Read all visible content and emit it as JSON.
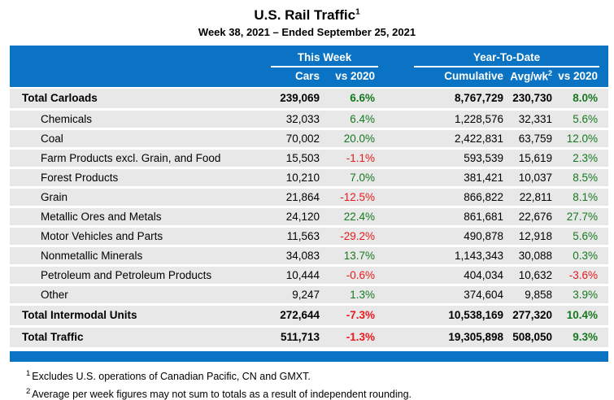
{
  "title": {
    "text": "U.S. Rail Traffic",
    "superscript": "1"
  },
  "subtitle": "Week 38, 2021 – Ended September 25, 2021",
  "table": {
    "group_headers": {
      "this_week": "This Week",
      "year_to_date": "Year-To-Date"
    },
    "column_headers": {
      "cars": "Cars",
      "vs_2020_week": "vs 2020",
      "cumulative": "Cumulative",
      "avg_wk": "Avg/wk",
      "avg_wk_superscript": "2",
      "vs_2020_ytd": "vs 2020"
    },
    "rows": [
      {
        "label": "Total Carloads",
        "bold": true,
        "indent": false,
        "cars": "239,069",
        "vs2020_week": "6.6%",
        "cumulative": "8,767,729",
        "avg_wk": "230,730",
        "vs2020_ytd": "8.0%"
      },
      {
        "label": "Chemicals",
        "bold": false,
        "indent": true,
        "cars": "32,033",
        "vs2020_week": "6.4%",
        "cumulative": "1,228,576",
        "avg_wk": "32,331",
        "vs2020_ytd": "5.6%"
      },
      {
        "label": "Coal",
        "bold": false,
        "indent": true,
        "cars": "70,002",
        "vs2020_week": "20.0%",
        "cumulative": "2,422,831",
        "avg_wk": "63,759",
        "vs2020_ytd": "12.0%"
      },
      {
        "label": "Farm Products excl. Grain, and Food",
        "bold": false,
        "indent": true,
        "cars": "15,503",
        "vs2020_week": "-1.1%",
        "cumulative": "593,539",
        "avg_wk": "15,619",
        "vs2020_ytd": "2.3%"
      },
      {
        "label": "Forest Products",
        "bold": false,
        "indent": true,
        "cars": "10,210",
        "vs2020_week": "7.0%",
        "cumulative": "381,421",
        "avg_wk": "10,037",
        "vs2020_ytd": "8.5%"
      },
      {
        "label": "Grain",
        "bold": false,
        "indent": true,
        "cars": "21,864",
        "vs2020_week": "-12.5%",
        "cumulative": "866,822",
        "avg_wk": "22,811",
        "vs2020_ytd": "8.1%"
      },
      {
        "label": "Metallic Ores and Metals",
        "bold": false,
        "indent": true,
        "cars": "24,120",
        "vs2020_week": "22.4%",
        "cumulative": "861,681",
        "avg_wk": "22,676",
        "vs2020_ytd": "27.7%"
      },
      {
        "label": "Motor Vehicles and Parts",
        "bold": false,
        "indent": true,
        "cars": "11,563",
        "vs2020_week": "-29.2%",
        "cumulative": "490,878",
        "avg_wk": "12,918",
        "vs2020_ytd": "5.6%"
      },
      {
        "label": "Nonmetallic Minerals",
        "bold": false,
        "indent": true,
        "cars": "34,083",
        "vs2020_week": "13.7%",
        "cumulative": "1,143,343",
        "avg_wk": "30,088",
        "vs2020_ytd": "0.3%"
      },
      {
        "label": "Petroleum and Petroleum Products",
        "bold": false,
        "indent": true,
        "cars": "10,444",
        "vs2020_week": "-0.6%",
        "cumulative": "404,034",
        "avg_wk": "10,632",
        "vs2020_ytd": "-3.6%"
      },
      {
        "label": "Other",
        "bold": false,
        "indent": true,
        "cars": "9,247",
        "vs2020_week": "1.3%",
        "cumulative": "374,604",
        "avg_wk": "9,858",
        "vs2020_ytd": "3.9%"
      },
      {
        "label": "Total Intermodal Units",
        "bold": true,
        "indent": false,
        "cars": "272,644",
        "vs2020_week": "-7.3%",
        "cumulative": "10,538,169",
        "avg_wk": "277,320",
        "vs2020_ytd": "10.4%"
      },
      {
        "label": "Total Traffic",
        "bold": true,
        "indent": false,
        "cars": "511,713",
        "vs2020_week": "-1.3%",
        "cumulative": "19,305,898",
        "avg_wk": "508,050",
        "vs2020_ytd": "9.3%"
      }
    ]
  },
  "footnotes": [
    {
      "superscript": "1",
      "text": "Excludes U.S. operations of Canadian Pacific, CN and GMXT."
    },
    {
      "superscript": "2",
      "text": "Average per week figures may not sum to totals as a result of independent rounding."
    }
  ],
  "colors": {
    "header_blue": "#0b73c3",
    "positive_green": "#15791f",
    "negative_red": "#e8191c",
    "row_gray": "#e8e8e8"
  }
}
